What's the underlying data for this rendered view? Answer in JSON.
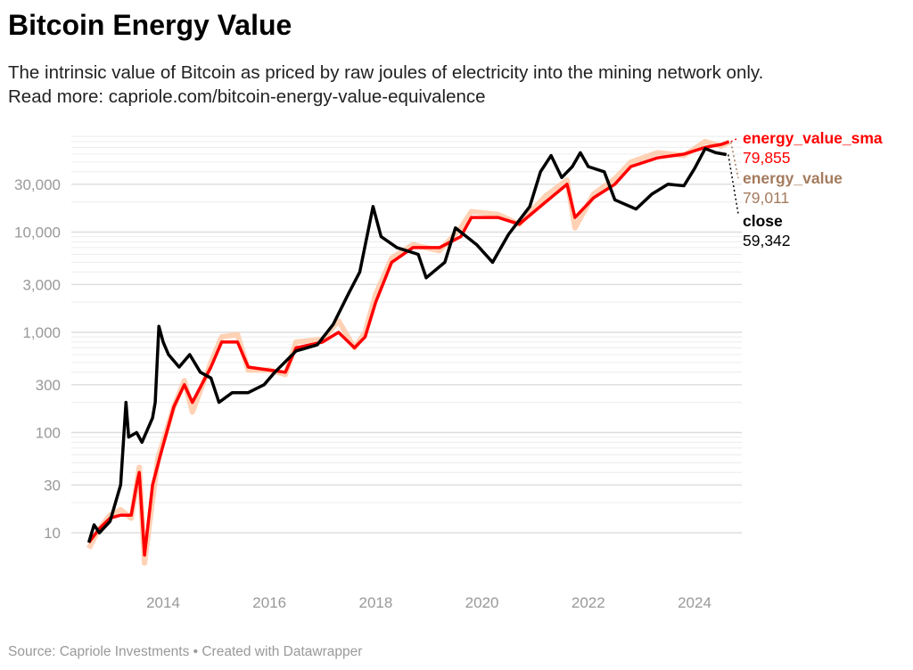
{
  "header": {
    "title": "Bitcoin Energy Value",
    "subtitle_line1": "The intrinsic value of Bitcoin as priced by raw joules of electricity into the mining network only.",
    "subtitle_line2": "Read more: capriole.com/bitcoin-energy-value-equivalence"
  },
  "footer": {
    "source": "Source: Capriole Investments • Created with Datawrapper"
  },
  "chart_data": {
    "type": "line",
    "y_scale": "log",
    "ylim": [
      4,
      90000
    ],
    "xlim": [
      2012.4,
      2024.9
    ],
    "grid": true,
    "y_ticks": [
      {
        "v": 10,
        "label": "10"
      },
      {
        "v": 30,
        "label": "30"
      },
      {
        "v": 100,
        "label": "100"
      },
      {
        "v": 300,
        "label": "300"
      },
      {
        "v": 1000,
        "label": "1,000"
      },
      {
        "v": 3000,
        "label": "3,000"
      },
      {
        "v": 10000,
        "label": "10,000"
      },
      {
        "v": 30000,
        "label": "30,000"
      }
    ],
    "x_ticks": [
      {
        "v": 2014,
        "label": "2014"
      },
      {
        "v": 2016,
        "label": "2016"
      },
      {
        "v": 2018,
        "label": "2018"
      },
      {
        "v": 2020,
        "label": "2020"
      },
      {
        "v": 2022,
        "label": "2022"
      },
      {
        "v": 2024,
        "label": "2024"
      }
    ],
    "series": [
      {
        "name": "energy_value",
        "last_label": "79,011",
        "color": "#ffc9a8",
        "label_color": "#a47b5e",
        "points": [
          [
            2012.6,
            7
          ],
          [
            2012.8,
            11
          ],
          [
            2013.0,
            15
          ],
          [
            2013.2,
            17
          ],
          [
            2013.4,
            14
          ],
          [
            2013.5,
            30
          ],
          [
            2013.55,
            45
          ],
          [
            2013.65,
            5
          ],
          [
            2013.9,
            55
          ],
          [
            2014.2,
            180
          ],
          [
            2014.4,
            330
          ],
          [
            2014.55,
            160
          ],
          [
            2014.9,
            500
          ],
          [
            2015.1,
            900
          ],
          [
            2015.4,
            950
          ],
          [
            2015.6,
            420
          ],
          [
            2016.0,
            420
          ],
          [
            2016.3,
            380
          ],
          [
            2016.5,
            800
          ],
          [
            2017.0,
            850
          ],
          [
            2017.3,
            1300
          ],
          [
            2017.6,
            700
          ],
          [
            2017.8,
            1000
          ],
          [
            2018.0,
            2400
          ],
          [
            2018.3,
            5500
          ],
          [
            2018.7,
            7500
          ],
          [
            2019.2,
            6500
          ],
          [
            2019.6,
            11000
          ],
          [
            2019.8,
            16000
          ],
          [
            2020.3,
            15000
          ],
          [
            2020.7,
            12000
          ],
          [
            2021.2,
            23000
          ],
          [
            2021.6,
            33000
          ],
          [
            2021.75,
            11000
          ],
          [
            2022.1,
            24000
          ],
          [
            2022.5,
            34000
          ],
          [
            2022.8,
            50000
          ],
          [
            2023.3,
            62000
          ],
          [
            2023.8,
            58000
          ],
          [
            2024.2,
            80000
          ],
          [
            2024.5,
            72000
          ],
          [
            2024.65,
            79011
          ]
        ]
      },
      {
        "name": "energy_value_sma",
        "last_label": "79,855",
        "color": "#ff0000",
        "label_color": "#ff0000",
        "points": [
          [
            2012.6,
            8
          ],
          [
            2012.8,
            11
          ],
          [
            2013.0,
            14
          ],
          [
            2013.2,
            15
          ],
          [
            2013.4,
            15
          ],
          [
            2013.5,
            30
          ],
          [
            2013.55,
            40
          ],
          [
            2013.65,
            6
          ],
          [
            2013.8,
            30
          ],
          [
            2013.95,
            60
          ],
          [
            2014.2,
            180
          ],
          [
            2014.4,
            300
          ],
          [
            2014.55,
            200
          ],
          [
            2014.9,
            450
          ],
          [
            2015.1,
            800
          ],
          [
            2015.4,
            800
          ],
          [
            2015.6,
            450
          ],
          [
            2016.0,
            420
          ],
          [
            2016.3,
            400
          ],
          [
            2016.5,
            700
          ],
          [
            2017.0,
            800
          ],
          [
            2017.3,
            1000
          ],
          [
            2017.6,
            700
          ],
          [
            2017.8,
            900
          ],
          [
            2018.0,
            2000
          ],
          [
            2018.3,
            5000
          ],
          [
            2018.7,
            7000
          ],
          [
            2019.2,
            7000
          ],
          [
            2019.6,
            9000
          ],
          [
            2019.8,
            14000
          ],
          [
            2020.3,
            14000
          ],
          [
            2020.7,
            12000
          ],
          [
            2021.2,
            20000
          ],
          [
            2021.6,
            30000
          ],
          [
            2021.75,
            14000
          ],
          [
            2022.1,
            22000
          ],
          [
            2022.5,
            30000
          ],
          [
            2022.8,
            45000
          ],
          [
            2023.3,
            55000
          ],
          [
            2023.8,
            60000
          ],
          [
            2024.2,
            70000
          ],
          [
            2024.5,
            75000
          ],
          [
            2024.65,
            79855
          ]
        ]
      },
      {
        "name": "close",
        "last_label": "59,342",
        "color": "#000000",
        "label_color": "#000000",
        "points": [
          [
            2012.6,
            8
          ],
          [
            2012.7,
            12
          ],
          [
            2012.8,
            10
          ],
          [
            2013.0,
            13
          ],
          [
            2013.2,
            30
          ],
          [
            2013.3,
            200
          ],
          [
            2013.35,
            90
          ],
          [
            2013.5,
            100
          ],
          [
            2013.6,
            80
          ],
          [
            2013.8,
            140
          ],
          [
            2013.85,
            200
          ],
          [
            2013.92,
            1150
          ],
          [
            2014.0,
            800
          ],
          [
            2014.1,
            600
          ],
          [
            2014.3,
            450
          ],
          [
            2014.5,
            600
          ],
          [
            2014.7,
            400
          ],
          [
            2014.9,
            350
          ],
          [
            2015.05,
            200
          ],
          [
            2015.3,
            250
          ],
          [
            2015.6,
            250
          ],
          [
            2015.9,
            300
          ],
          [
            2016.1,
            400
          ],
          [
            2016.5,
            650
          ],
          [
            2016.9,
            750
          ],
          [
            2017.2,
            1200
          ],
          [
            2017.5,
            2500
          ],
          [
            2017.7,
            4000
          ],
          [
            2017.95,
            18000
          ],
          [
            2018.1,
            9000
          ],
          [
            2018.4,
            7000
          ],
          [
            2018.8,
            6000
          ],
          [
            2018.95,
            3500
          ],
          [
            2019.3,
            5000
          ],
          [
            2019.5,
            11000
          ],
          [
            2019.9,
            7500
          ],
          [
            2020.2,
            5000
          ],
          [
            2020.5,
            9500
          ],
          [
            2020.9,
            18000
          ],
          [
            2021.1,
            40000
          ],
          [
            2021.3,
            58000
          ],
          [
            2021.5,
            35000
          ],
          [
            2021.7,
            45000
          ],
          [
            2021.85,
            62000
          ],
          [
            2022.0,
            45000
          ],
          [
            2022.3,
            40000
          ],
          [
            2022.5,
            21000
          ],
          [
            2022.9,
            17000
          ],
          [
            2023.2,
            24000
          ],
          [
            2023.5,
            30000
          ],
          [
            2023.8,
            29000
          ],
          [
            2024.0,
            43000
          ],
          [
            2024.2,
            68000
          ],
          [
            2024.4,
            62000
          ],
          [
            2024.6,
            59342
          ]
        ]
      }
    ]
  }
}
